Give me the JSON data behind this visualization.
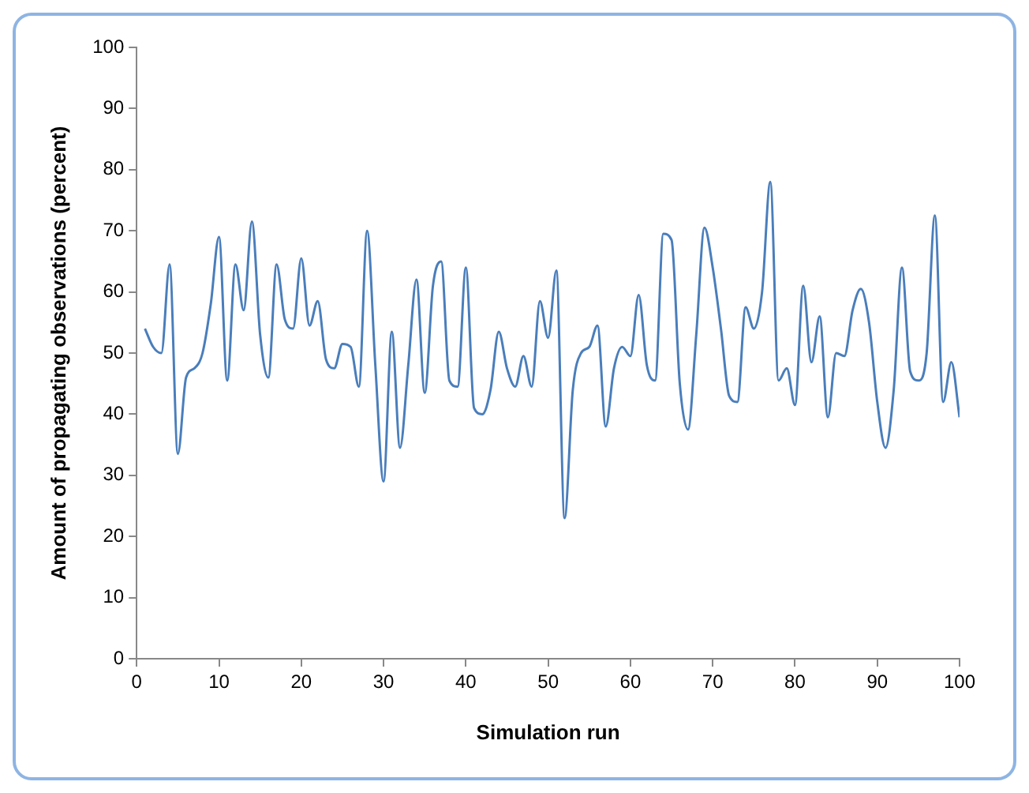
{
  "chart_data": {
    "type": "line",
    "xlabel": "Simulation run",
    "ylabel": "Amount of propagating observations (percent)",
    "x": [
      1,
      2,
      3,
      4,
      5,
      6,
      7,
      8,
      9,
      10,
      11,
      12,
      13,
      14,
      15,
      16,
      17,
      18,
      19,
      20,
      21,
      22,
      23,
      24,
      25,
      26,
      27,
      28,
      29,
      30,
      31,
      32,
      33,
      34,
      35,
      36,
      37,
      38,
      39,
      40,
      41,
      42,
      43,
      44,
      45,
      46,
      47,
      48,
      49,
      50,
      51,
      52,
      53,
      54,
      55,
      56,
      57,
      58,
      59,
      60,
      61,
      62,
      63,
      64,
      65,
      66,
      67,
      68,
      69,
      70,
      71,
      72,
      73,
      74,
      75,
      76,
      77,
      78,
      79,
      80,
      81,
      82,
      83,
      84,
      85,
      86,
      87,
      88,
      89,
      90,
      91,
      92,
      93,
      94,
      95,
      96,
      97,
      98,
      99,
      100
    ],
    "series": [
      {
        "color": "#4a7ebb",
        "values": [
          54,
          51,
          50,
          64.5,
          33.5,
          46,
          47.5,
          50,
          58,
          69,
          45.5,
          64.5,
          57,
          71.5,
          53,
          46,
          64.5,
          55.5,
          54,
          65.5,
          54.5,
          58.5,
          49,
          47.5,
          51.5,
          51,
          44.5,
          70,
          48,
          29,
          53.5,
          34.5,
          48,
          62,
          43.5,
          61,
          65,
          45.5,
          44.5,
          64,
          41,
          40,
          44,
          53.5,
          47.5,
          44.5,
          49.5,
          44.5,
          58.5,
          52.5,
          63.5,
          23,
          44,
          50,
          51,
          54.5,
          38,
          47.5,
          51,
          49.5,
          59.5,
          48,
          45.5,
          69.5,
          68.5,
          45,
          37.5,
          53,
          70.5,
          64,
          54,
          43,
          42,
          57.5,
          54,
          60,
          78,
          45.5,
          47.5,
          41.5,
          61,
          48.5,
          56,
          39.5,
          50,
          49.5,
          57,
          60.5,
          55,
          42,
          34.5,
          44,
          64,
          47,
          45.5,
          50,
          72.5,
          42,
          48.5,
          39.5
        ]
      }
    ],
    "xlim": [
      0,
      100
    ],
    "xticks": [
      0,
      10,
      20,
      30,
      40,
      50,
      60,
      70,
      80,
      90,
      100
    ],
    "ylim": [
      0,
      100
    ],
    "yticks": [
      0,
      10,
      20,
      30,
      40,
      50,
      60,
      70,
      80,
      90,
      100
    ],
    "grid": false,
    "legend": false,
    "marker": "none",
    "line_style": "solid"
  }
}
